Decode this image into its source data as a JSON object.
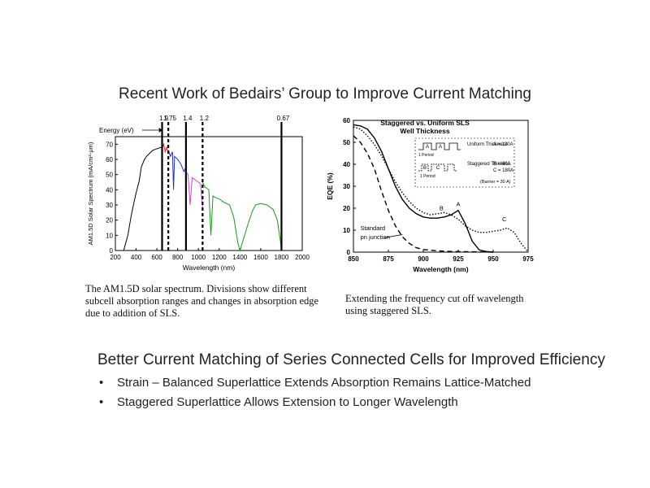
{
  "slide": {
    "title": "Recent Work of Bedairs’ Group to Improve Current Matching",
    "caption_left": "The AM1.5D solar spectrum. Divisions show different subcell absorption ranges and changes in absorption edge due to addition of SLS.",
    "caption_right": "Extending the frequency cut off wavelength using staggered SLS.",
    "heading": "Better Current Matching of Series Connected Cells for Improved Efficiency",
    "bullets": [
      "Strain – Balanced Superlattice Extends Absorption Remains Lattice-Matched",
      "Staggered Superlattice Allows Extension to Longer Wavelength"
    ],
    "bullet_symbol": "•"
  },
  "chart_data": [
    {
      "type": "line",
      "title": "",
      "xlabel": "Wavelength (nm)",
      "ylabel": "AM1.5D Solar Spectrum (mA/cm²-μm)",
      "xlim": [
        200,
        2000
      ],
      "ylim": [
        0,
        75
      ],
      "xticks": [
        200,
        400,
        600,
        800,
        1000,
        1200,
        1400,
        1600,
        1800,
        2000
      ],
      "yticks": [
        0,
        10,
        20,
        30,
        40,
        50,
        60,
        70
      ],
      "energy_label": "Energy (eV)",
      "energy_markers": [
        {
          "label": "1.9",
          "x": 650,
          "style": "solid"
        },
        {
          "label": "1.75",
          "x": 710,
          "style": "dashed"
        },
        {
          "label": "1.4",
          "x": 880,
          "style": "solid"
        },
        {
          "label": "1.2",
          "x": 1040,
          "style": "dashed"
        },
        {
          "label": "0.67",
          "x": 1800,
          "style": "solid"
        }
      ],
      "series": [
        {
          "color": "#000000",
          "x": [
            280,
            320,
            350,
            380,
            400,
            430,
            450,
            480,
            500,
            530,
            560,
            600,
            640,
            650
          ],
          "y": [
            0,
            10,
            22,
            32,
            38,
            46,
            55,
            60,
            62,
            64,
            66,
            67,
            68,
            67
          ]
        },
        {
          "color": "#e0202a",
          "x": [
            650,
            665,
            680,
            695,
            710
          ],
          "y": [
            67,
            70,
            65,
            68,
            64
          ]
        },
        {
          "color": "#1f2fd0",
          "x": [
            710,
            730,
            750,
            760,
            770,
            800,
            830,
            860,
            880
          ],
          "y": [
            66,
            62,
            65,
            40,
            62,
            60,
            57,
            52,
            55
          ]
        },
        {
          "color": "#e040e0",
          "x": [
            880,
            900,
            920,
            940,
            960,
            980,
            1000,
            1020,
            1040
          ],
          "y": [
            52,
            50,
            30,
            48,
            47,
            46,
            45,
            44,
            28
          ]
        },
        {
          "color": "#1a9a1a",
          "x": [
            1040,
            1060,
            1100,
            1120,
            1140,
            1160,
            1200,
            1240,
            1300,
            1340,
            1380,
            1400,
            1480,
            1520,
            1550,
            1600,
            1660,
            1720,
            1760,
            1790,
            1800
          ],
          "y": [
            45,
            42,
            40,
            10,
            36,
            35,
            34,
            32,
            30,
            22,
            5,
            0,
            18,
            26,
            30,
            31,
            30,
            27,
            20,
            6,
            0
          ]
        }
      ]
    },
    {
      "type": "line",
      "title": "Staggered vs. Uniform SLS Well Thickness",
      "xlabel": "Wavelength (nm)",
      "ylabel": "EQE (%)",
      "xlim": [
        850,
        975
      ],
      "ylim": [
        0,
        60
      ],
      "xticks": [
        850,
        875,
        900,
        925,
        950,
        975
      ],
      "yticks": [
        0,
        10,
        20,
        30,
        40,
        50,
        60
      ],
      "series": [
        {
          "style": "solid",
          "x": [
            850,
            855,
            860,
            865,
            870,
            875,
            880,
            885,
            890,
            895,
            900,
            905,
            910,
            915,
            920,
            925,
            930,
            935,
            940,
            945,
            950
          ],
          "y": [
            58,
            57.5,
            56,
            52,
            46,
            38,
            30,
            24,
            20,
            17.5,
            16,
            15.5,
            15.5,
            16,
            17,
            19,
            13,
            5,
            1,
            0.3,
            0
          ]
        },
        {
          "style": "dotted",
          "x": [
            850,
            855,
            860,
            865,
            870,
            875,
            880,
            885,
            890,
            895,
            900,
            905,
            910,
            915,
            920,
            925,
            930,
            935,
            940,
            945,
            950,
            955,
            960,
            965,
            970,
            975
          ],
          "y": [
            57,
            56,
            53,
            49,
            44,
            38,
            32,
            27,
            23,
            20,
            18,
            17,
            17.5,
            18,
            17,
            15,
            12,
            10,
            9,
            9,
            9.5,
            10,
            11,
            9,
            4,
            0
          ]
        },
        {
          "style": "dashed",
          "x": [
            850,
            855,
            860,
            865,
            870,
            875,
            880,
            885,
            890,
            895,
            900,
            910,
            920,
            930,
            940,
            950
          ],
          "y": [
            53,
            50,
            45,
            38,
            28,
            19,
            12,
            7,
            4,
            2,
            1.2,
            0.6,
            0.3,
            0.2,
            0.1,
            0
          ]
        }
      ],
      "annotations": [
        {
          "text": "A",
          "x": 925,
          "y": 21
        },
        {
          "text": "B",
          "x": 913,
          "y": 19
        },
        {
          "text": "C",
          "x": 958,
          "y": 14
        },
        {
          "text": "Standard",
          "x": 855,
          "y": 10
        },
        {
          "text": "pn junction",
          "x": 855,
          "y": 6
        }
      ],
      "inset": {
        "uniform_label": "Uniform Thickness",
        "staggered_label": "Staggered Thickess",
        "period_label": "1 Period",
        "well_labels": [
          "A",
          "A",
          "B",
          "C"
        ],
        "params": [
          "A = 120A",
          "B = 60A",
          "C = 180A"
        ],
        "barrier": "(Barrier = 30 A)"
      }
    }
  ]
}
